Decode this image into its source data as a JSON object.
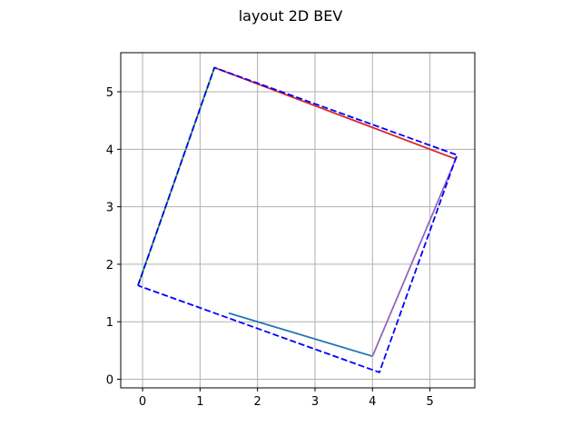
{
  "chart_data": {
    "type": "line",
    "title": "layout 2D BEV",
    "xlabel": "",
    "ylabel": "",
    "xlim": [
      -0.38,
      5.78
    ],
    "ylim": [
      -0.15,
      5.68
    ],
    "xticks": [
      0,
      1,
      2,
      3,
      4,
      5
    ],
    "yticks": [
      0,
      1,
      2,
      3,
      4,
      5
    ],
    "xtick_labels": [
      "0",
      "1",
      "2",
      "3",
      "4",
      "5"
    ],
    "ytick_labels": [
      "0",
      "1",
      "2",
      "3",
      "4",
      "5"
    ],
    "grid": true,
    "legend": "none",
    "series": [
      {
        "color": "#1f77b4",
        "style": "solid",
        "x": [
          1.5,
          4.0
        ],
        "y": [
          1.15,
          0.4
        ]
      },
      {
        "color": "#d62728",
        "style": "solid",
        "x": [
          1.25,
          5.45
        ],
        "y": [
          5.42,
          3.83
        ]
      },
      {
        "color": "#9467bd",
        "style": "solid",
        "x": [
          4.0,
          5.47
        ],
        "y": [
          0.4,
          3.88
        ]
      },
      {
        "color": "#2ca02c",
        "style": "solid",
        "x": [
          -0.08,
          1.25
        ],
        "y": [
          1.63,
          5.42
        ]
      },
      {
        "color": "#0000ff",
        "style": "dashed",
        "x": [
          -0.08,
          1.25,
          5.47,
          4.12,
          -0.08
        ],
        "y": [
          1.63,
          5.42,
          3.9,
          0.12,
          1.63
        ]
      }
    ]
  }
}
